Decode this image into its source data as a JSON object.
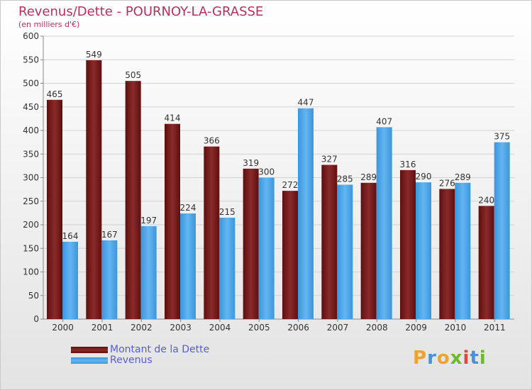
{
  "title": "Revenus/Dette - POURNOY-LA-GRASSE",
  "subtitle": "(en milliers d'€)",
  "logo": {
    "text": "Proxiti",
    "letters": [
      "P",
      "r",
      "o",
      "x",
      "i",
      "t",
      "i"
    ],
    "colors": [
      "#f0a32a",
      "#4a90d9",
      "#f0a32a",
      "#6fb82d",
      "#d94a3a",
      "#4a90d9",
      "#6fb82d"
    ]
  },
  "chart_data": {
    "type": "bar",
    "categories": [
      "2000",
      "2001",
      "2002",
      "2003",
      "2004",
      "2005",
      "2006",
      "2007",
      "2008",
      "2009",
      "2010",
      "2011"
    ],
    "series": [
      {
        "name": "Montant de la Dette",
        "color": "#7a1a1a",
        "values": [
          465,
          549,
          505,
          414,
          366,
          319,
          272,
          327,
          289,
          316,
          276,
          240
        ]
      },
      {
        "name": "Revenus",
        "color": "#4aa3e6",
        "values": [
          164,
          167,
          197,
          224,
          215,
          300,
          447,
          285,
          407,
          290,
          289,
          375
        ]
      }
    ],
    "ylim": [
      0,
      600
    ],
    "yticks": [
      0,
      50,
      100,
      150,
      200,
      250,
      300,
      350,
      400,
      450,
      500,
      550,
      600
    ],
    "grid": true,
    "legend": "bottom-left"
  }
}
